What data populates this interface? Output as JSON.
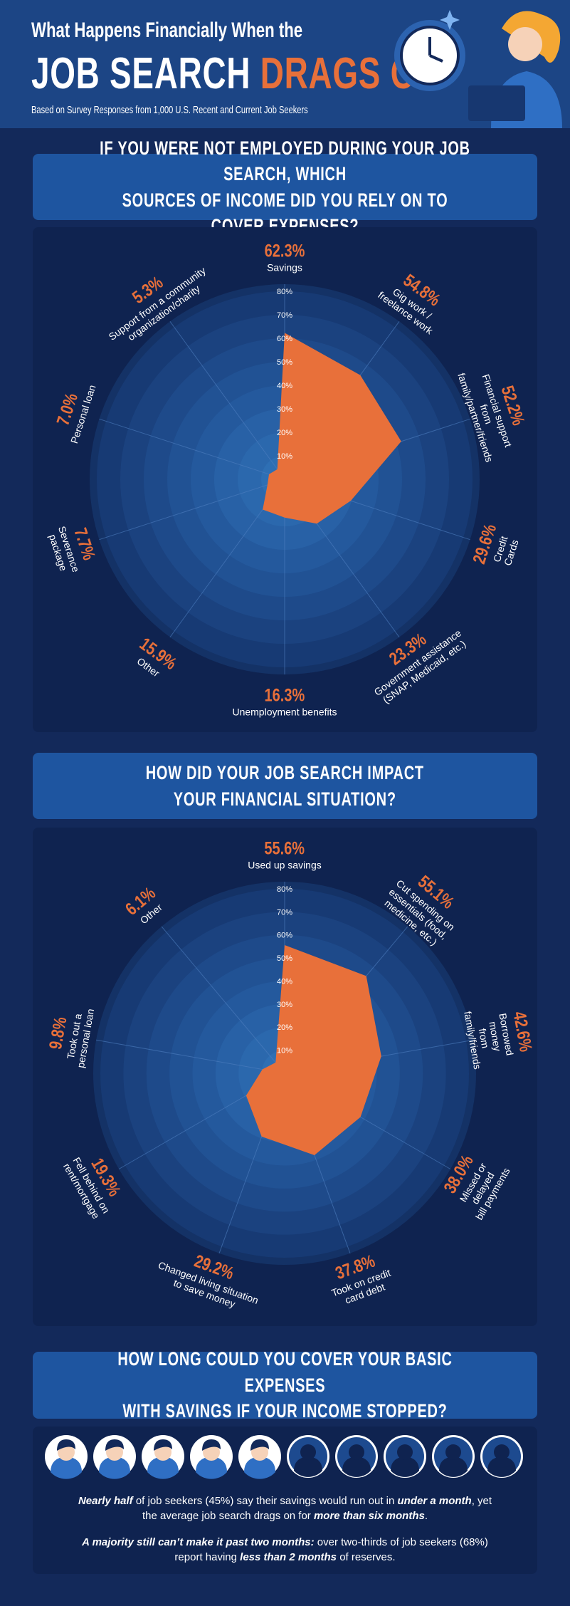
{
  "header": {
    "kicker": "What Happens Financially When the",
    "title": "JOB SEARCH",
    "title_highlight": "DRAGS ON",
    "subtitle": "Based on Survey Responses from 1,000 U.S. Recent and Current Job Seekers"
  },
  "chart_data": [
    {
      "type": "radar",
      "title": "IF YOU WERE NOT EMPLOYED DURING YOUR JOB SEARCH, WHICH\nSOURCES OF INCOME DID YOU RELY ON TO COVER EXPENSES?",
      "categories": [
        "Savings",
        "Gig work /\nfreelance work",
        "Financial support from\nfamily/partner/friends",
        "Credit Cards",
        "Government assistance\n(SNAP, Medicaid, etc.)",
        "Unemployment benefits",
        "Other",
        "Severance\npackage",
        "Personal loan",
        "Support from a community\norganization/charity"
      ],
      "values": [
        62.3,
        54.8,
        52.2,
        29.6,
        23.3,
        16.3,
        15.9,
        7.7,
        7.0,
        5.3
      ],
      "value_labels": [
        "62.3%",
        "54.8%",
        "52.2%",
        "29.6%",
        "23.3%",
        "16.3%",
        "15.9%",
        "7.7%",
        "7.0%",
        "5.3%"
      ],
      "color": "#e8703a",
      "ylim": [
        0,
        80
      ],
      "yticks": [
        {
          "value": 10,
          "label": "10%"
        },
        {
          "value": 20,
          "label": "20%"
        },
        {
          "value": 30,
          "label": "30%"
        },
        {
          "value": 40,
          "label": "40%"
        },
        {
          "value": 50,
          "label": "50%"
        },
        {
          "value": 60,
          "label": "60%"
        },
        {
          "value": 70,
          "label": "70%"
        },
        {
          "value": 80,
          "label": "80%"
        }
      ]
    },
    {
      "type": "radar",
      "title": "HOW DID YOUR JOB SEARCH IMPACT\nYOUR FINANCIAL SITUATION?",
      "categories": [
        "Used up savings",
        "Cut spending on\nessentials (food, medicine, etc.)",
        "Borrowed money\nfrom family/friends",
        "Missed or delayed\nbill payments",
        "Took on credit\ncard debt",
        "Changed living situation\nto save money",
        "Fell behind on\nrent/mortgage",
        "Took out a\npersonal loan",
        "Other"
      ],
      "values": [
        55.6,
        55.1,
        42.6,
        38.0,
        37.8,
        29.2,
        19.3,
        9.8,
        6.1
      ],
      "value_labels": [
        "55.6%",
        "55.1%",
        "42.6%",
        "38.0%",
        "37.8%",
        "29.2%",
        "19.3%",
        "9.8%",
        "6.1%"
      ],
      "color": "#e8703a",
      "ylim": [
        0,
        80
      ],
      "yticks": [
        {
          "value": 10,
          "label": "10%"
        },
        {
          "value": 20,
          "label": "20%"
        },
        {
          "value": 30,
          "label": "30%"
        },
        {
          "value": 40,
          "label": "40%"
        },
        {
          "value": 50,
          "label": "50%"
        },
        {
          "value": 60,
          "label": "60%"
        },
        {
          "value": 70,
          "label": "70%"
        },
        {
          "value": 80,
          "label": "80%"
        }
      ]
    }
  ],
  "savings_section": {
    "title": "HOW LONG COULD YOU COVER YOUR BASIC EXPENSES\nWITH SAVINGS IF YOUR INCOME STOPPED?",
    "paragraphs": [
      [
        "Nearly half",
        " of job seekers (45%) say their savings would run out in ",
        "under a month",
        ", yet the average job search drags on for ",
        "more than six months",
        "."
      ],
      [
        "A majority still can’t make it past two months:",
        " over two-thirds of job seekers (68%) report having ",
        "less than 2 months",
        " of reserves."
      ]
    ]
  }
}
